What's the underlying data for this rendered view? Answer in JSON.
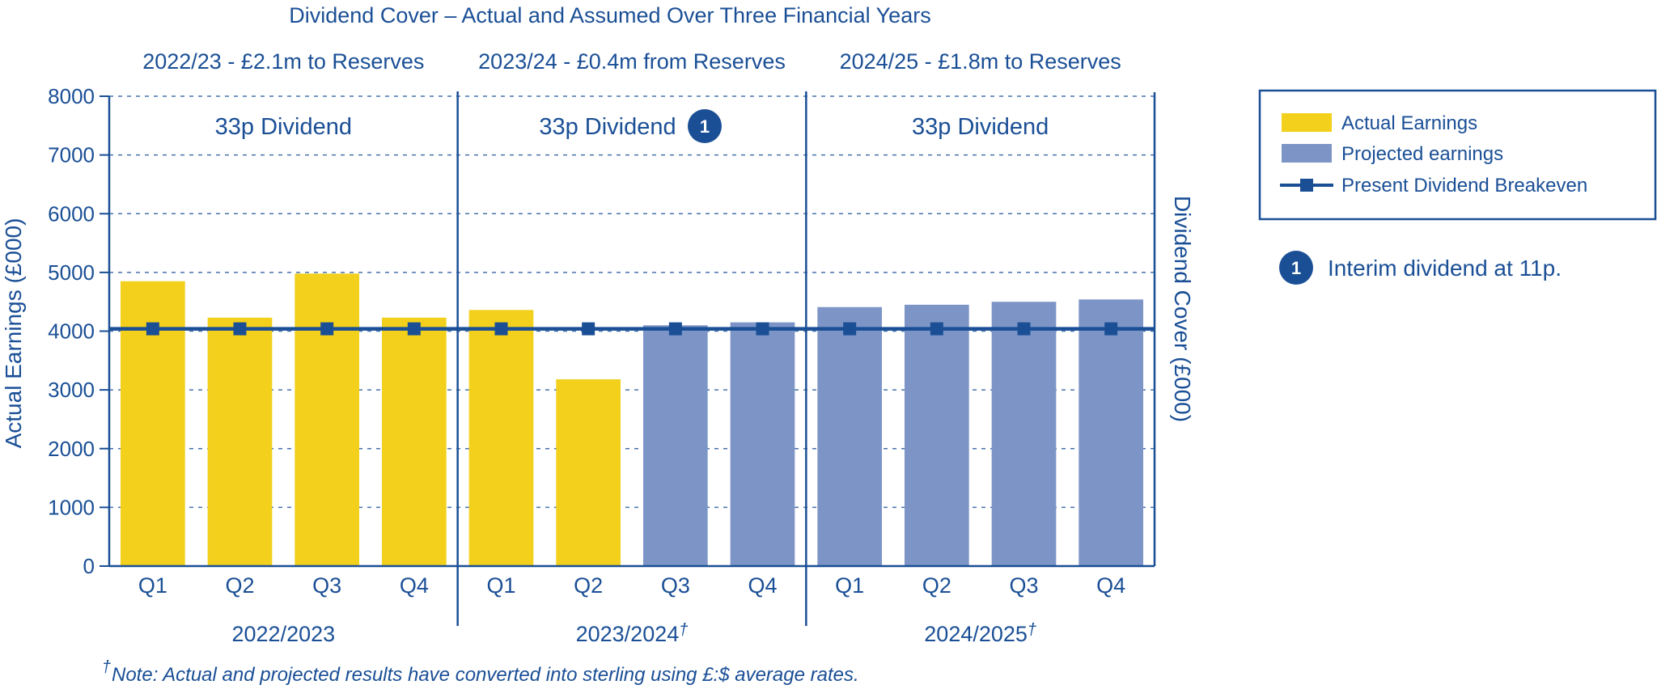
{
  "chart_data": {
    "type": "bar",
    "title": "Dividend Cover – Actual and Assumed Over Three Financial Years",
    "ylabel_left": "Actual Earnings (£000)",
    "ylabel_right": "Dividend Cover (£000)",
    "ylim": [
      0,
      8000
    ],
    "yticks": [
      "0",
      "1000",
      "2000",
      "3000",
      "4000",
      "5000",
      "6000",
      "7000",
      "8000"
    ],
    "grid": true,
    "categories": [
      "Q1",
      "Q2",
      "Q3",
      "Q4",
      "Q1",
      "Q2",
      "Q3",
      "Q4",
      "Q1",
      "Q2",
      "Q3",
      "Q4"
    ],
    "values": [
      4850,
      4230,
      4980,
      4230,
      4360,
      3180,
      4100,
      4150,
      4410,
      4450,
      4500,
      4540
    ],
    "bar_kind": [
      "actual",
      "actual",
      "actual",
      "actual",
      "actual",
      "actual",
      "projected",
      "projected",
      "projected",
      "projected",
      "projected",
      "projected"
    ],
    "breakeven": [
      4040,
      4040,
      4040,
      4040,
      4040,
      4040,
      4040,
      4040,
      4040,
      4040,
      4040,
      4040
    ],
    "years": [
      {
        "label": "2022/2023",
        "dagger": "",
        "summary": "2022/23 - £2.1m to Reserves",
        "dividend": "33p Dividend",
        "badge": ""
      },
      {
        "label": "2023/2024",
        "dagger": "†",
        "summary": "2023/24 - £0.4m from Reserves",
        "dividend": "33p Dividend",
        "badge": "1"
      },
      {
        "label": "2024/2025",
        "dagger": "†",
        "summary": "2024/25 - £1.8m to Reserves",
        "dividend": "33p Dividend",
        "badge": ""
      }
    ],
    "legend": [
      {
        "label": "Actual Earnings",
        "kind": "actual"
      },
      {
        "label": "Projected earnings",
        "kind": "projected"
      },
      {
        "label": "Present Dividend Breakeven",
        "kind": "line"
      }
    ],
    "legend_position": "right",
    "colors": {
      "actual": "#f2d01c",
      "projected": "#7d95c6",
      "line": "#1a4f96",
      "text": "#1a4f96"
    },
    "annotation": {
      "badge": "1",
      "text": "Interim dividend at 11p."
    },
    "note": {
      "dagger": "†",
      "text": "Note: Actual and projected results have converted into sterling using £:$ average rates."
    }
  }
}
